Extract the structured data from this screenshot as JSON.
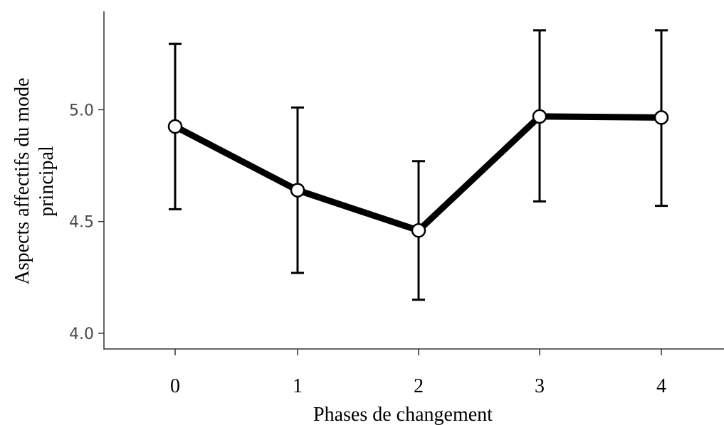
{
  "chart_data": {
    "type": "line",
    "xlabel": "Phases de changement",
    "ylabel_lines": [
      "Aspects affectifs du mode",
      "principal"
    ],
    "categories": [
      "0",
      "1",
      "2",
      "3",
      "4"
    ],
    "values": [
      4.925,
      4.64,
      4.46,
      4.97,
      4.965
    ],
    "error_low": [
      4.555,
      4.27,
      4.15,
      4.59,
      4.57
    ],
    "error_high": [
      5.295,
      5.01,
      4.77,
      5.355,
      5.355
    ],
    "yticks": [
      4.0,
      4.5,
      5.0
    ],
    "ytick_labels": [
      "4.0",
      "4.5",
      "5.0"
    ],
    "ylim": [
      3.93,
      5.44
    ],
    "grid": false,
    "legend": "none",
    "colors": {
      "line": "#000000",
      "marker_fill": "#ffffff",
      "axis": "#333333"
    }
  }
}
